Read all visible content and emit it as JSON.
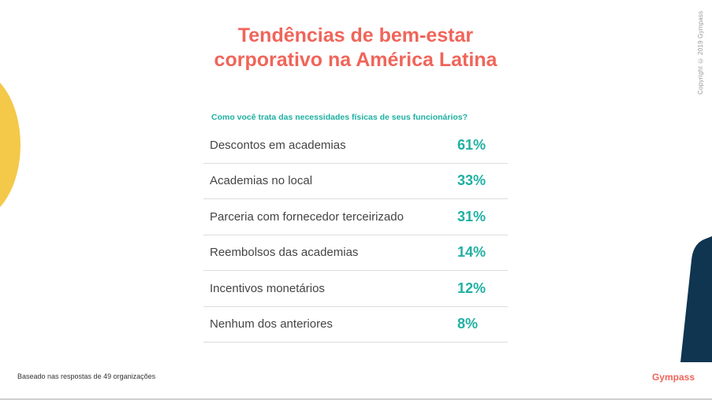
{
  "title": {
    "line1": "Tendências de bem-estar",
    "line2": "corporativo na América Latina"
  },
  "copyright": "Copyright © 2019 Gympass",
  "question": "Como você  trata das necessidades físicas de seus funcionários?",
  "rows": [
    {
      "label": "Descontos em academias",
      "value": "61%"
    },
    {
      "label": "Academias no local",
      "value": "33%"
    },
    {
      "label": "Parceria com fornecedor terceirizado",
      "value": "31%"
    },
    {
      "label": "Reembolsos das academias",
      "value": "14%"
    },
    {
      "label": "Incentivos monetários",
      "value": "12%"
    },
    {
      "label": "Nenhum dos anteriores",
      "value": "8%"
    }
  ],
  "footnote": "Baseado nas respostas de 49 organizações",
  "logo": "Gympass",
  "colors": {
    "accent_coral": "#f0655a",
    "accent_teal": "#1fb0a2",
    "yellow": "#f4c94a",
    "navy": "#0f3550"
  }
}
